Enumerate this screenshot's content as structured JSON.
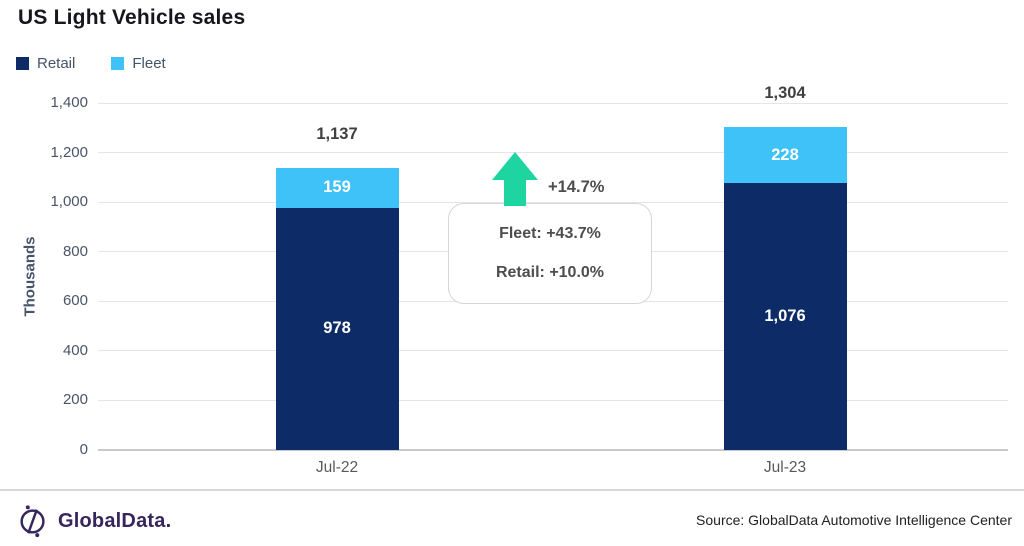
{
  "title": "US Light Vehicle sales",
  "legend": [
    {
      "label": "Retail",
      "color": "#0d2b66"
    },
    {
      "label": "Fleet",
      "color": "#3ec2f8"
    }
  ],
  "chart_data": {
    "type": "bar",
    "stacked": true,
    "title": "US Light Vehicle sales",
    "xlabel": "",
    "ylabel": "Thousands",
    "ylim": [
      0,
      1400
    ],
    "grid": "horizontal",
    "legend_position": "top-left",
    "categories": [
      "Jul-22",
      "Jul-23"
    ],
    "series": [
      {
        "name": "Retail",
        "color": "#0d2b66",
        "values": [
          978,
          1076
        ],
        "labels": [
          "978",
          "1,076"
        ]
      },
      {
        "name": "Fleet",
        "color": "#3ec2f8",
        "values": [
          159,
          228
        ],
        "labels": [
          "159",
          "228"
        ]
      }
    ],
    "totals": [
      "1,137",
      "1,304"
    ],
    "yticks": [
      {
        "label": "1,400",
        "value": 1400
      },
      {
        "label": "1,200",
        "value": 1200
      },
      {
        "label": "1,000",
        "value": 1000
      },
      {
        "label": "800",
        "value": 800
      },
      {
        "label": "600",
        "value": 600
      },
      {
        "label": "400",
        "value": 400
      },
      {
        "label": "200",
        "value": 200
      },
      {
        "label": "0",
        "value": 0
      }
    ]
  },
  "annotation": {
    "overall_change": "+14.7%",
    "lines": [
      "Fleet: +43.7%",
      "Retail: +10.0%"
    ],
    "arrow_color": "#1ed5a2"
  },
  "footer": {
    "logo_text": "GlobalData.",
    "logo_color": "#37265c",
    "source": "Source: GlobalData Automotive Intelligence Center"
  }
}
